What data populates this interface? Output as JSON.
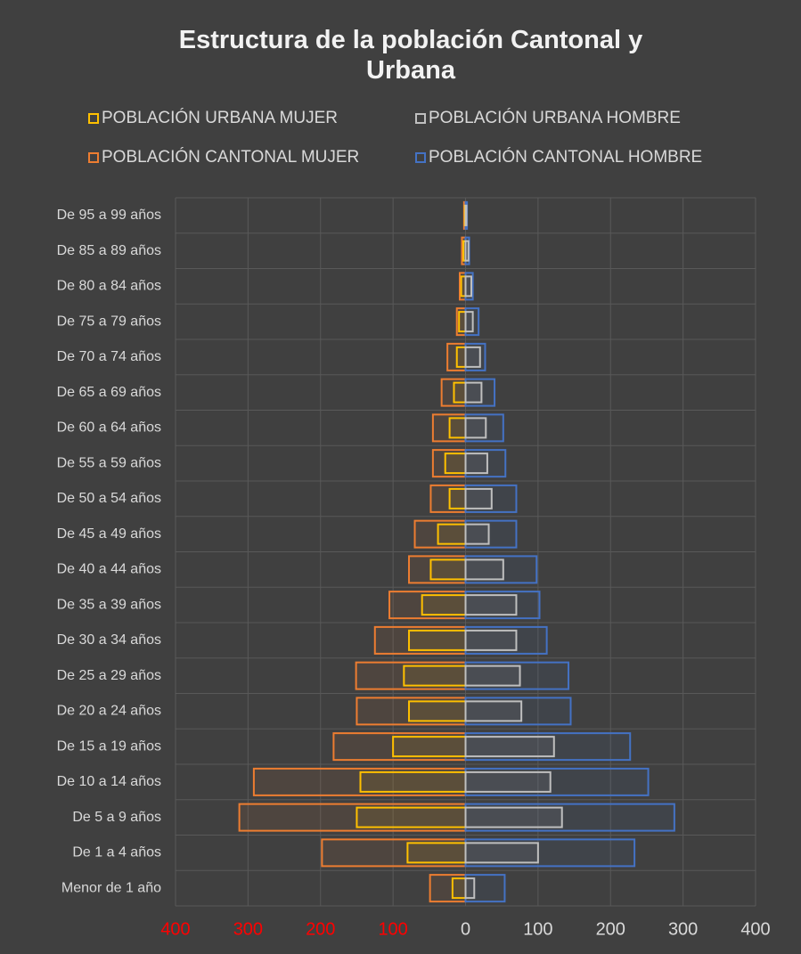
{
  "chart_data": {
    "type": "pyramid",
    "title": "Estructura de la población Cantonal y Urbana",
    "categories": [
      "De 95 a 99 años",
      "De 85 a 89 años",
      "De 80 a 84 años",
      "De 75 a 79 años",
      "De 70 a 74 años",
      "De 65 a 69 años",
      "De 60 a 64 años",
      "De 55 a 59 años",
      "De 50 a 54 años",
      "De 45 a 49 años",
      "De 40 a 44 años",
      "De 35 a 39 años",
      "De 30 a 34 años",
      "De 25 a 29 años",
      "De 20 a 24 años",
      "De 15 a 19 años",
      "De 10 a 14 años",
      "De 5 a 9 años",
      "De 1 a 4 años",
      "Menor de 1 año"
    ],
    "series": [
      {
        "name": "POBLACIÓN URBANA MUJER",
        "color": "#ffc000",
        "group": "urbana",
        "values": [
          -1,
          -3,
          -6,
          -9,
          -12,
          -16,
          -22,
          -28,
          -22,
          -38,
          -48,
          -60,
          -78,
          -85,
          -78,
          -100,
          -145,
          -150,
          -80,
          -18
        ]
      },
      {
        "name": "POBLACIÓN URBANA HOMBRE",
        "color": "#bfbfbf",
        "group": "urbana",
        "values": [
          1,
          4,
          8,
          10,
          20,
          22,
          28,
          30,
          36,
          32,
          52,
          70,
          70,
          75,
          77,
          122,
          117,
          133,
          100,
          12
        ]
      },
      {
        "name": "POBLACIÓN CANTONAL MUJER",
        "color": "#ed7d31",
        "group": "cantonal",
        "values": [
          -2,
          -5,
          -8,
          -12,
          -25,
          -33,
          -45,
          -45,
          -48,
          -70,
          -78,
          -105,
          -125,
          -151,
          -150,
          -182,
          -292,
          -312,
          -198,
          -49
        ]
      },
      {
        "name": "POBLACIÓN CANTONAL HOMBRE",
        "color": "#4472c4",
        "group": "cantonal",
        "values": [
          2,
          5,
          10,
          18,
          27,
          40,
          52,
          55,
          70,
          70,
          98,
          102,
          112,
          142,
          145,
          227,
          252,
          288,
          233,
          54
        ]
      }
    ],
    "xlim": [
      -400,
      400
    ],
    "xticks": [
      {
        "value": -400,
        "label": "400"
      },
      {
        "value": -300,
        "label": "300"
      },
      {
        "value": -200,
        "label": "200"
      },
      {
        "value": -100,
        "label": "100"
      },
      0,
      100,
      200,
      300,
      400
    ],
    "negative_tick_color": "#ff0000",
    "grid": true
  }
}
